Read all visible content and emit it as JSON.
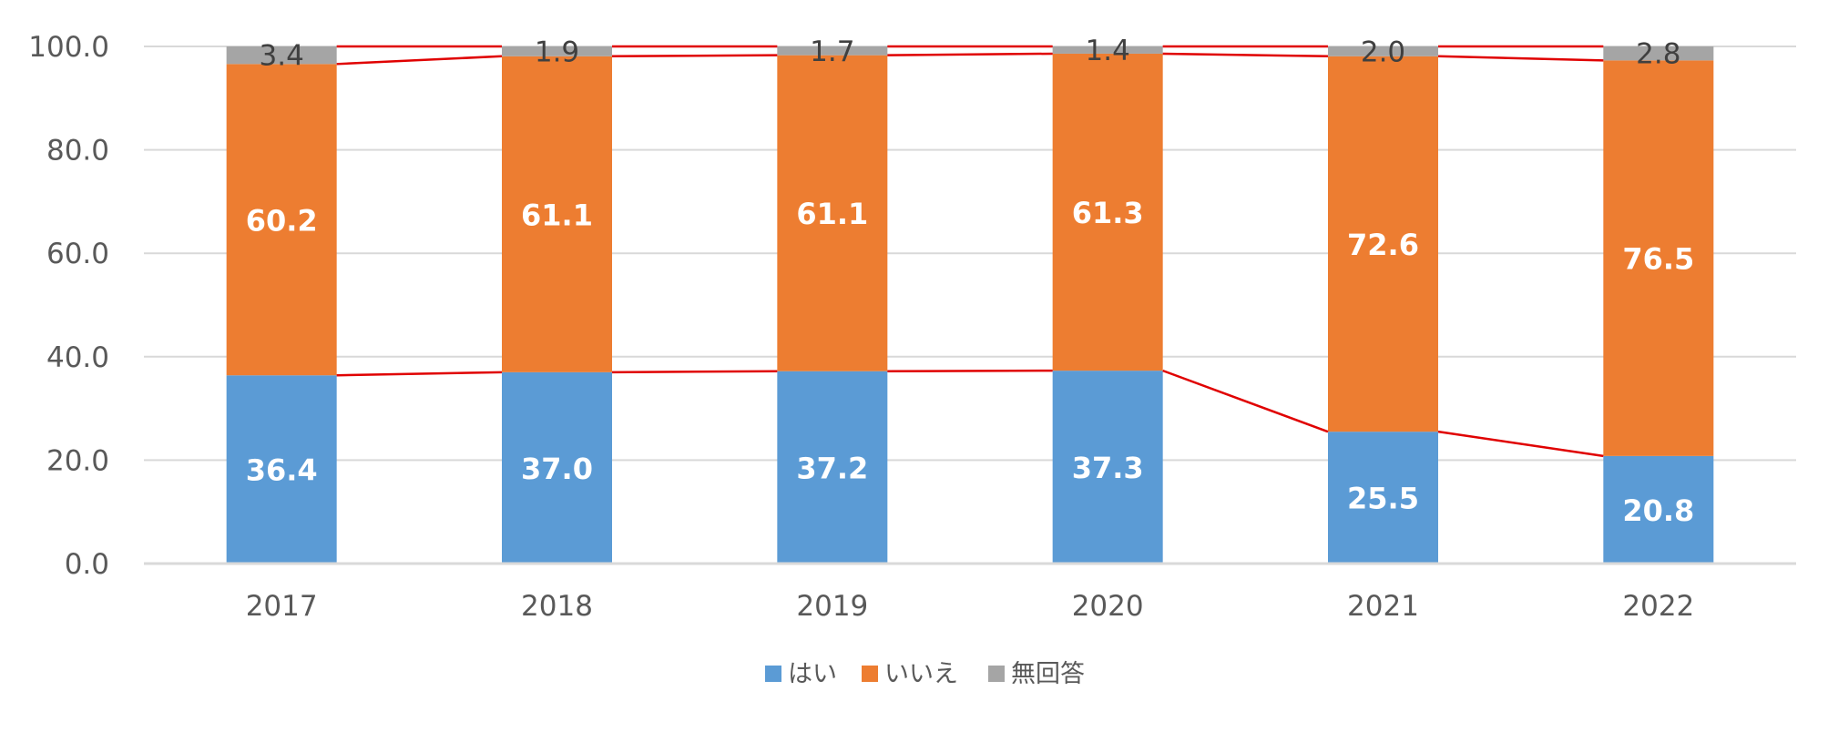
{
  "chart_data": {
    "type": "bar",
    "stacked": true,
    "categories": [
      "2017",
      "2018",
      "2019",
      "2020",
      "2021",
      "2022"
    ],
    "series": [
      {
        "name": "はい",
        "color": "#5B9BD5",
        "values": [
          36.4,
          37.0,
          37.2,
          37.3,
          25.5,
          20.8
        ]
      },
      {
        "name": "いいえ",
        "color": "#ED7D31",
        "values": [
          60.2,
          61.1,
          61.1,
          61.3,
          72.6,
          76.5
        ]
      },
      {
        "name": "無回答",
        "color": "#A5A5A5",
        "values": [
          3.4,
          1.9,
          1.7,
          1.4,
          2.0,
          2.8
        ]
      }
    ],
    "y_ticks": [
      "0.0",
      "20.0",
      "40.0",
      "60.0",
      "80.0",
      "100.0"
    ],
    "ylim": [
      0,
      100
    ],
    "grid": true,
    "legend": "bottom-center",
    "connector_lines_color": "#E00000",
    "title": "",
    "xlabel": "",
    "ylabel": ""
  }
}
